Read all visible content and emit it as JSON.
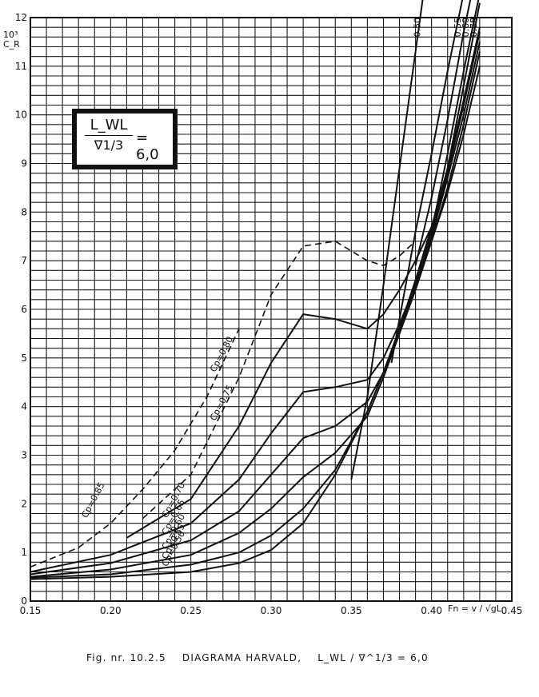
{
  "chart_data": {
    "type": "line",
    "ratio_box": {
      "numerator": "L_WL",
      "denominator": "∇1/3",
      "value": "= 6,0"
    },
    "y_unit_scale": "10³",
    "ylabel": "C_R",
    "xlabel": "Fn = v / √gL",
    "xlim": [
      0.15,
      0.45
    ],
    "ylim": [
      0,
      12
    ],
    "grid": true,
    "x_ticks": [
      "0.15",
      "0.20",
      "0.25",
      "0.30",
      "0.35",
      "0.40",
      "0.45"
    ],
    "y_ticks": [
      "0",
      "1",
      "2",
      "3",
      "4",
      "5",
      "6",
      "7",
      "8",
      "9",
      "10",
      "11",
      "12"
    ],
    "series": [
      {
        "name": "Cp=0.50",
        "label_pos": "lower",
        "x": [
          0.15,
          0.2,
          0.25,
          0.28,
          0.3,
          0.32,
          0.34,
          0.36,
          0.37,
          0.38,
          0.39,
          0.4,
          0.41,
          0.42,
          0.43
        ],
        "y": [
          0.45,
          0.5,
          0.6,
          0.78,
          1.05,
          1.6,
          2.6,
          3.9,
          4.7,
          5.6,
          6.6,
          7.7,
          8.9,
          10.3,
          11.8
        ]
      },
      {
        "name": "Cp=0.55",
        "x": [
          0.15,
          0.2,
          0.25,
          0.28,
          0.3,
          0.32,
          0.34,
          0.36,
          0.37,
          0.38,
          0.39,
          0.4,
          0.41,
          0.42,
          0.43
        ],
        "y": [
          0.48,
          0.55,
          0.75,
          1.0,
          1.35,
          1.9,
          2.7,
          3.9,
          4.7,
          5.6,
          6.6,
          7.6,
          8.8,
          10.2,
          11.7
        ]
      },
      {
        "name": "Cp=0.60",
        "x": [
          0.15,
          0.2,
          0.25,
          0.28,
          0.3,
          0.32,
          0.34,
          0.36,
          0.37,
          0.38,
          0.39,
          0.4,
          0.41,
          0.42,
          0.43
        ],
        "y": [
          0.5,
          0.65,
          0.95,
          1.4,
          1.9,
          2.55,
          3.05,
          3.8,
          4.6,
          5.5,
          6.5,
          7.5,
          8.7,
          10.0,
          11.5
        ]
      },
      {
        "name": "Cp=0.65",
        "x": [
          0.15,
          0.2,
          0.25,
          0.28,
          0.3,
          0.32,
          0.34,
          0.36,
          0.37,
          0.38,
          0.39,
          0.4,
          0.41,
          0.42,
          0.43
        ],
        "y": [
          0.55,
          0.78,
          1.25,
          1.85,
          2.6,
          3.35,
          3.6,
          4.1,
          4.7,
          5.5,
          6.4,
          7.4,
          8.5,
          9.8,
          11.3
        ]
      },
      {
        "name": "Cp=0.70",
        "x": [
          0.15,
          0.2,
          0.25,
          0.28,
          0.3,
          0.32,
          0.34,
          0.36,
          0.37,
          0.38,
          0.39,
          0.4,
          0.41,
          0.42,
          0.43
        ],
        "y": [
          0.6,
          0.95,
          1.6,
          2.5,
          3.45,
          4.3,
          4.4,
          4.55,
          5.0,
          5.7,
          6.5,
          7.4,
          8.4,
          9.6,
          11.0
        ]
      },
      {
        "name": "Cp=0.75",
        "x": [
          0.21,
          0.25,
          0.28,
          0.3,
          0.32,
          0.34,
          0.36,
          0.37,
          0.38,
          0.39,
          0.4
        ],
        "y": [
          1.3,
          2.1,
          3.6,
          4.9,
          5.9,
          5.8,
          5.6,
          5.9,
          6.4,
          7.0,
          7.7
        ]
      },
      {
        "name": "Cp=0.80",
        "dashed": true,
        "x": [
          0.22,
          0.25,
          0.28,
          0.3,
          0.32,
          0.34,
          0.36,
          0.37,
          0.38,
          0.39
        ],
        "y": [
          1.7,
          2.6,
          4.6,
          6.3,
          7.3,
          7.4,
          7.0,
          6.9,
          7.1,
          7.4
        ]
      },
      {
        "name": "Cp=0.85",
        "dashed": true,
        "label_only": true,
        "x": [
          0.15,
          0.18,
          0.2,
          0.22,
          0.24,
          0.26,
          0.28
        ],
        "y": [
          0.7,
          1.1,
          1.6,
          2.3,
          3.1,
          4.2,
          5.6
        ]
      }
    ],
    "steep_curves": [
      {
        "name": "0.50",
        "x": [
          0.35,
          0.36,
          0.37,
          0.38,
          0.39,
          0.395
        ],
        "y": [
          2.5,
          4.2,
          6.5,
          8.9,
          11.3,
          12.5
        ]
      },
      {
        "name": "0.55",
        "x": [
          0.375,
          0.39,
          0.4,
          0.41,
          0.42
        ],
        "y": [
          4.9,
          7.6,
          9.2,
          10.9,
          12.5
        ]
      },
      {
        "name": "0.60",
        "x": [
          0.39,
          0.4,
          0.41,
          0.42,
          0.425
        ],
        "y": [
          6.9,
          8.3,
          9.9,
          11.7,
          12.5
        ]
      },
      {
        "name": "0.65",
        "x": [
          0.4,
          0.41,
          0.42,
          0.43
        ],
        "y": [
          7.6,
          9.2,
          10.9,
          12.5
        ]
      },
      {
        "name": "0.70",
        "x": [
          0.4,
          0.41,
          0.42,
          0.43
        ],
        "y": [
          7.4,
          8.9,
          10.6,
          12.3
        ]
      }
    ]
  },
  "caption": {
    "prefix": "Fig. nr. 10.2.5",
    "title": "DIAGRAMA  HARVALD,",
    "formula": "L_WL / ∇^1/3  = 6,0"
  },
  "labels": {
    "ratio_num": "L_WL",
    "ratio_den": "∇1/3",
    "ratio_eq": "= 6,0",
    "y_unit": "10³",
    "y_axis": "C_R",
    "x_axis": "Fn = v / √gL"
  }
}
